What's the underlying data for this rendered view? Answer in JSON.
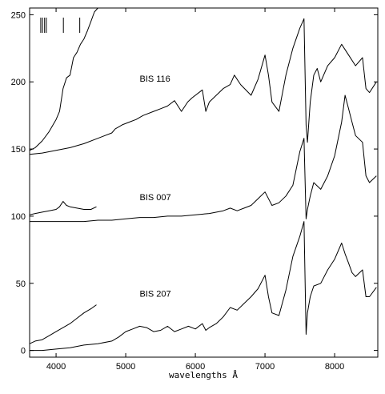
{
  "chart_data": {
    "type": "line",
    "title": "",
    "xlabel": "wavelengths Å",
    "ylabel": "",
    "xlim": [
      3620,
      8620
    ],
    "ylim": [
      -5,
      255
    ],
    "xticks": [
      4000,
      5000,
      6000,
      7000,
      8000
    ],
    "yticks": [
      0,
      50,
      100,
      150,
      200,
      250
    ],
    "grid": false,
    "legend": "none",
    "marker_wavelengths": [
      3780,
      3805,
      3835,
      3860,
      4105,
      4340
    ],
    "series": [
      {
        "name": "BIS 116",
        "x": [
          3620,
          3800,
          4000,
          4200,
          4400,
          4600,
          4800,
          4850,
          4950,
          5050,
          5150,
          5250,
          5400,
          5500,
          5600,
          5700,
          5800,
          5890,
          5950,
          6100,
          6150,
          6200,
          6300,
          6400,
          6500,
          6560,
          6650,
          6800,
          6900,
          7000,
          7050,
          7100,
          7200,
          7300,
          7400,
          7500,
          7560,
          7590,
          7610,
          7650,
          7700,
          7750,
          7800,
          7900,
          8000,
          8100,
          8200,
          8300,
          8400,
          8450,
          8500,
          8600
        ],
        "y": [
          146,
          147,
          149,
          151,
          154,
          158,
          162,
          165,
          168,
          170,
          172,
          175,
          178,
          180,
          182,
          186,
          178,
          185,
          188,
          194,
          178,
          185,
          190,
          195,
          198,
          205,
          198,
          190,
          202,
          220,
          205,
          185,
          178,
          205,
          225,
          240,
          247,
          168,
          155,
          185,
          205,
          210,
          200,
          212,
          218,
          228,
          220,
          212,
          218,
          195,
          192,
          200
        ],
        "inset_x": [
          3620,
          3700,
          3800,
          3900,
          4000,
          4050,
          4100,
          4150,
          4200,
          4250,
          4300,
          4350,
          4400,
          4450,
          4500,
          4550,
          4600
        ],
        "inset_y": [
          149,
          151,
          156,
          163,
          172,
          178,
          195,
          203,
          205,
          218,
          222,
          228,
          232,
          238,
          245,
          252,
          258
        ]
      },
      {
        "name": "BIS 007",
        "x": [
          3620,
          3800,
          4000,
          4200,
          4400,
          4600,
          4800,
          5000,
          5200,
          5400,
          5600,
          5800,
          6000,
          6200,
          6400,
          6500,
          6600,
          6700,
          6800,
          6900,
          7000,
          7100,
          7200,
          7300,
          7400,
          7500,
          7560,
          7590,
          7610,
          7650,
          7700,
          7800,
          7900,
          8000,
          8100,
          8150,
          8200,
          8250,
          8300,
          8400,
          8450,
          8500,
          8600
        ],
        "y": [
          96,
          96,
          96,
          96,
          96,
          97,
          97,
          98,
          99,
          99,
          100,
          100,
          101,
          102,
          104,
          106,
          104,
          106,
          108,
          113,
          118,
          108,
          110,
          115,
          123,
          148,
          158,
          98,
          105,
          115,
          125,
          120,
          130,
          145,
          170,
          190,
          180,
          170,
          160,
          155,
          130,
          125,
          130
        ],
        "inset_x": [
          3620,
          3700,
          3800,
          3900,
          4000,
          4050,
          4100,
          4150,
          4200,
          4300,
          4400,
          4500,
          4580
        ],
        "inset_y": [
          101,
          102,
          103,
          104,
          105,
          107,
          111,
          108,
          107,
          106,
          105,
          105,
          107
        ]
      },
      {
        "name": "BIS 207",
        "x": [
          3620,
          3800,
          4000,
          4200,
          4400,
          4600,
          4800,
          4900,
          5000,
          5100,
          5200,
          5300,
          5400,
          5500,
          5600,
          5700,
          5800,
          5900,
          6000,
          6100,
          6150,
          6200,
          6300,
          6400,
          6500,
          6600,
          6700,
          6800,
          6900,
          7000,
          7050,
          7100,
          7200,
          7300,
          7400,
          7500,
          7560,
          7590,
          7610,
          7650,
          7700,
          7800,
          7900,
          8000,
          8100,
          8150,
          8200,
          8250,
          8300,
          8400,
          8450,
          8500,
          8600
        ],
        "y": [
          0,
          0,
          1,
          2,
          4,
          5,
          7,
          10,
          14,
          16,
          18,
          17,
          14,
          15,
          18,
          14,
          16,
          18,
          16,
          20,
          15,
          17,
          20,
          25,
          32,
          30,
          35,
          40,
          46,
          56,
          40,
          28,
          26,
          45,
          70,
          85,
          96,
          12,
          28,
          40,
          48,
          50,
          60,
          68,
          80,
          72,
          65,
          58,
          55,
          60,
          40,
          40,
          47
        ],
        "inset_x": [
          3620,
          3700,
          3800,
          3900,
          4000,
          4100,
          4200,
          4300,
          4400,
          4500,
          4580
        ],
        "inset_y": [
          5,
          7,
          8,
          11,
          14,
          17,
          20,
          24,
          28,
          31,
          34
        ]
      }
    ]
  }
}
